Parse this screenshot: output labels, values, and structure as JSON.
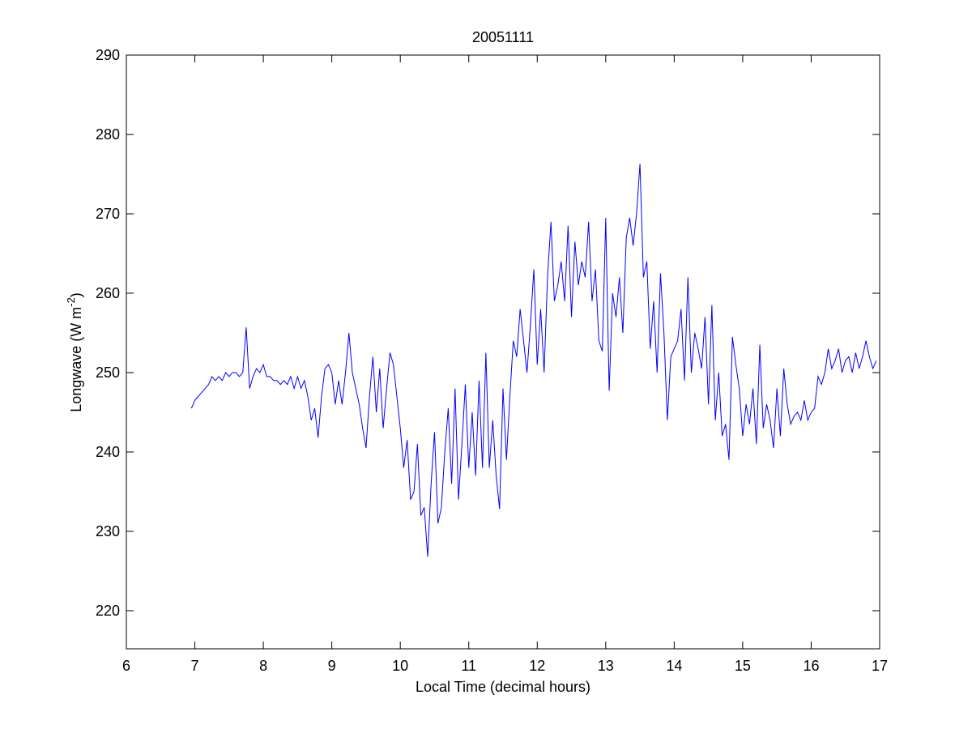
{
  "chart_data": {
    "type": "line",
    "title": "20051111",
    "xlabel": "Local Time (decimal hours)",
    "ylabel": "Longwave (W m",
    "ylabel_sup": "-2",
    "ylabel_end": ")",
    "color": "#0000ff",
    "xlim": [
      6,
      17
    ],
    "xticks": [
      6,
      7,
      8,
      9,
      10,
      11,
      12,
      13,
      14,
      15,
      16,
      17
    ],
    "ylim": [
      215.2,
      290
    ],
    "yticks": [
      220,
      230,
      240,
      250,
      260,
      270,
      280,
      290
    ],
    "x": [
      6.95,
      7,
      7.05,
      7.1,
      7.15,
      7.2,
      7.25,
      7.3,
      7.35,
      7.4,
      7.45,
      7.5,
      7.55,
      7.6,
      7.65,
      7.7,
      7.75,
      7.8,
      7.85,
      7.9,
      7.95,
      8,
      8.05,
      8.1,
      8.15,
      8.2,
      8.25,
      8.3,
      8.35,
      8.4,
      8.45,
      8.5,
      8.55,
      8.6,
      8.65,
      8.7,
      8.75,
      8.8,
      8.85,
      8.9,
      8.95,
      9,
      9.05,
      9.1,
      9.15,
      9.2,
      9.25,
      9.3,
      9.35,
      9.4,
      9.45,
      9.5,
      9.55,
      9.6,
      9.65,
      9.7,
      9.75,
      9.8,
      9.85,
      9.9,
      9.95,
      10,
      10.05,
      10.1,
      10.15,
      10.2,
      10.25,
      10.3,
      10.35,
      10.4,
      10.45,
      10.5,
      10.55,
      10.6,
      10.65,
      10.7,
      10.75,
      10.8,
      10.85,
      10.9,
      10.95,
      11,
      11.05,
      11.1,
      11.15,
      11.2,
      11.25,
      11.3,
      11.35,
      11.4,
      11.45,
      11.5,
      11.55,
      11.6,
      11.65,
      11.7,
      11.75,
      11.8,
      11.85,
      11.9,
      11.95,
      12,
      12.05,
      12.1,
      12.15,
      12.2,
      12.25,
      12.3,
      12.35,
      12.4,
      12.45,
      12.5,
      12.55,
      12.6,
      12.65,
      12.7,
      12.75,
      12.8,
      12.85,
      12.9,
      12.95,
      13,
      13.05,
      13.1,
      13.15,
      13.2,
      13.25,
      13.3,
      13.35,
      13.4,
      13.45,
      13.5,
      13.55,
      13.6,
      13.65,
      13.7,
      13.75,
      13.8,
      13.85,
      13.9,
      13.95,
      14,
      14.05,
      14.1,
      14.15,
      14.2,
      14.25,
      14.3,
      14.35,
      14.4,
      14.45,
      14.5,
      14.55,
      14.6,
      14.65,
      14.7,
      14.75,
      14.8,
      14.85,
      14.9,
      14.95,
      15,
      15.05,
      15.1,
      15.15,
      15.2,
      15.25,
      15.3,
      15.35,
      15.4,
      15.45,
      15.5,
      15.55,
      15.6,
      15.65,
      15.7,
      15.75,
      15.8,
      15.85,
      15.9,
      15.95,
      16,
      16.05,
      16.1,
      16.15,
      16.2,
      16.25,
      16.3,
      16.35,
      16.4,
      16.45,
      16.5,
      16.55,
      16.6,
      16.65,
      16.7,
      16.75,
      16.8,
      16.85,
      16.9,
      16.95
    ],
    "values": [
      245.5,
      246.5,
      247,
      247.5,
      248,
      248.5,
      249.5,
      249,
      249.5,
      249,
      250,
      249.5,
      250,
      250,
      249.5,
      250,
      255.7,
      248,
      249.5,
      250.5,
      250,
      251,
      249.5,
      249.5,
      249,
      249,
      248.5,
      249,
      248.5,
      249.5,
      248,
      249.5,
      248,
      249,
      247,
      244,
      245.5,
      241.8,
      247,
      250.5,
      251,
      250,
      246,
      249,
      246,
      250,
      255,
      250,
      248,
      246,
      243,
      240.5,
      247,
      252,
      245,
      250.5,
      243,
      248,
      252.5,
      251,
      247,
      243,
      238,
      241.5,
      234,
      235,
      241,
      232,
      233,
      226.8,
      236,
      242.5,
      231,
      233,
      240,
      245.5,
      236,
      248,
      234,
      241,
      248.5,
      238,
      245,
      237,
      249,
      238,
      252.5,
      238,
      244,
      237,
      232.8,
      248,
      239,
      247,
      254,
      252,
      258,
      254,
      250,
      256,
      263,
      251,
      258,
      250,
      262,
      269,
      259,
      261,
      264,
      259,
      268.5,
      257,
      266.5,
      261,
      264,
      262,
      269,
      259,
      263,
      254,
      252.7,
      269.5,
      247.7,
      260,
      257,
      262,
      255,
      267,
      269.5,
      266,
      270,
      276.3,
      262,
      264,
      253,
      259,
      250,
      262.5,
      255,
      244,
      252,
      253,
      254,
      258,
      249,
      262,
      250,
      255,
      253,
      250.5,
      257,
      246,
      258.5,
      244,
      250,
      242,
      243.5,
      239,
      254.5,
      251,
      248,
      242,
      246,
      243.5,
      248,
      241,
      253.5,
      243,
      246,
      244,
      240.5,
      248,
      242,
      250.5,
      246,
      243.5,
      244.5,
      245,
      244,
      246.5,
      244,
      245,
      245.5,
      249.5,
      248.5,
      250,
      253,
      250.5,
      251.5,
      253,
      250,
      251.5,
      252,
      250,
      252.5,
      250.5,
      252,
      254,
      252,
      250.5,
      251.5
    ]
  }
}
